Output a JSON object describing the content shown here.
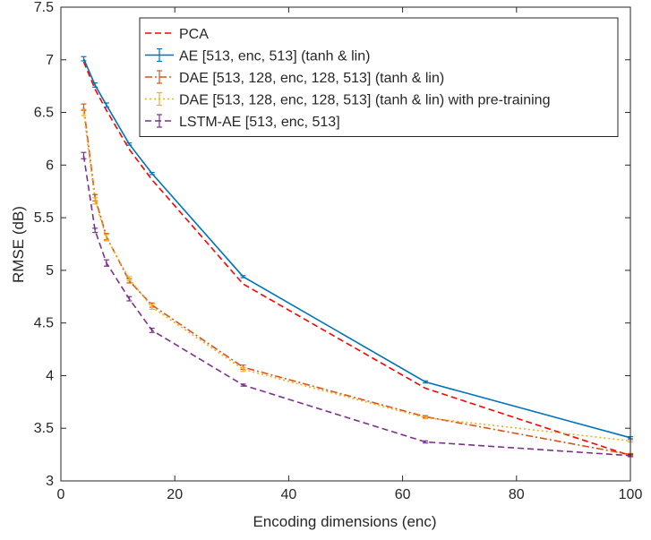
{
  "chart_data": {
    "type": "line",
    "title": "",
    "xlabel": "Encoding dimensions (enc)",
    "ylabel": "RMSE (dB)",
    "xlim": [
      0,
      100
    ],
    "ylim": [
      3,
      7.5
    ],
    "xticks": [
      0,
      20,
      40,
      60,
      80,
      100
    ],
    "xtick_labels": [
      "0",
      "20",
      "40",
      "60",
      "80",
      "100"
    ],
    "yticks": [
      3,
      3.5,
      4,
      4.5,
      5,
      5.5,
      6,
      6.5,
      7,
      7.5
    ],
    "ytick_labels": [
      "3",
      "3.5",
      "4",
      "4.5",
      "5",
      "5.5",
      "6",
      "6.5",
      "7",
      "7.5"
    ],
    "grid": false,
    "legend_position": "top-right",
    "x": [
      4,
      6,
      8,
      12,
      16,
      32,
      64,
      100
    ],
    "series": [
      {
        "name": "PCA",
        "color": "#ff0000",
        "style": "dashed",
        "errorbars": false,
        "values": [
          6.98,
          6.72,
          6.52,
          6.15,
          5.86,
          4.87,
          3.88,
          3.24
        ],
        "errors": [
          0,
          0,
          0,
          0,
          0,
          0,
          0,
          0
        ]
      },
      {
        "name": "AE [513, enc, 513] (tanh & lin)",
        "color": "#0072bd",
        "style": "solid",
        "errorbars": true,
        "values": [
          7.01,
          6.76,
          6.57,
          6.2,
          5.92,
          4.94,
          3.94,
          3.41
        ],
        "errors": [
          0.02,
          0.02,
          0.02,
          0.01,
          0.01,
          0.01,
          0.01,
          0.01
        ]
      },
      {
        "name": "DAE [513, 128, enc, 128, 513] (tanh & lin)",
        "color": "#d95319",
        "style": "dashdot",
        "errorbars": true,
        "values": [
          6.55,
          5.69,
          5.32,
          4.9,
          4.67,
          4.08,
          3.61,
          3.25
        ],
        "errors": [
          0.03,
          0.03,
          0.03,
          0.02,
          0.02,
          0.02,
          0.01,
          0.01
        ]
      },
      {
        "name": "DAE [513, 128, enc, 128, 513] (tanh & lin) with pre-training",
        "color": "#edb120",
        "style": "dotted",
        "errorbars": true,
        "values": [
          6.5,
          5.66,
          5.31,
          4.92,
          4.65,
          4.06,
          3.6,
          3.38
        ],
        "errors": [
          0.03,
          0.03,
          0.03,
          0.02,
          0.02,
          0.02,
          0.01,
          0.01
        ]
      },
      {
        "name": "LSTM-AE [513, enc, 513]",
        "color": "#7e2f8e",
        "style": "dashed",
        "errorbars": true,
        "values": [
          6.09,
          5.38,
          5.07,
          4.73,
          4.43,
          3.91,
          3.37,
          3.24
        ],
        "errors": [
          0.03,
          0.02,
          0.03,
          0.02,
          0.02,
          0.01,
          0.01,
          0.01
        ]
      }
    ]
  }
}
